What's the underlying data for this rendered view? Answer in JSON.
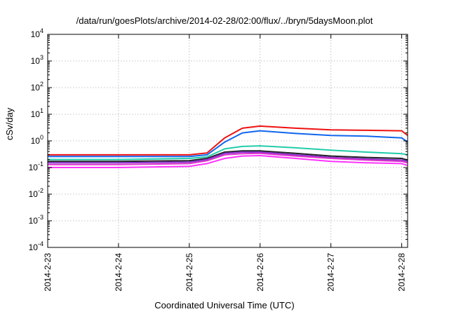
{
  "chart_data": {
    "type": "line",
    "title": "/data/run/goesPlots/archive/2014-02-28/02:00/flux/../bryn/5daysMoon.plot",
    "xlabel": "Coordinated Universal Time (UTC)",
    "ylabel": "cSv/day",
    "yscale": "log",
    "ylim": [
      0.0001,
      10000
    ],
    "xlim": [
      "2014-02-23",
      "2014-02-28 02:00"
    ],
    "yticks": [
      {
        "base": "10",
        "exp": "-4"
      },
      {
        "base": "10",
        "exp": "-3"
      },
      {
        "base": "10",
        "exp": "-2"
      },
      {
        "base": "10",
        "exp": "-1"
      },
      {
        "base": "10",
        "exp": "0"
      },
      {
        "base": "10",
        "exp": "1"
      },
      {
        "base": "10",
        "exp": "2"
      },
      {
        "base": "10",
        "exp": "3"
      },
      {
        "base": "10",
        "exp": "4"
      }
    ],
    "xticks": [
      "2014-2-23",
      "2014-2-24",
      "2014-2-25",
      "2014-2-26",
      "2014-2-27",
      "2014-2-28"
    ],
    "grid": true,
    "series": [
      {
        "color": "#ee1111",
        "x": [
          "2014-02-23",
          "2014-02-24",
          "2014-02-25",
          "2014-02-25 06:00",
          "2014-02-25 12:00",
          "2014-02-25 18:00",
          "2014-02-26",
          "2014-02-26 12:00",
          "2014-02-27",
          "2014-02-27 12:00",
          "2014-02-28",
          "2014-02-28 02:00"
        ],
        "y": [
          0.3,
          0.3,
          0.3,
          0.35,
          1.3,
          3.0,
          3.6,
          3.0,
          2.6,
          2.5,
          2.4,
          1.6
        ]
      },
      {
        "color": "#1166ee",
        "x": [
          "2014-02-23",
          "2014-02-24",
          "2014-02-25",
          "2014-02-25 06:00",
          "2014-02-25 12:00",
          "2014-02-25 18:00",
          "2014-02-26",
          "2014-02-26 12:00",
          "2014-02-27",
          "2014-02-27 12:00",
          "2014-02-28",
          "2014-02-28 02:00"
        ],
        "y": [
          0.26,
          0.26,
          0.26,
          0.3,
          0.9,
          2.0,
          2.4,
          1.9,
          1.6,
          1.5,
          1.3,
          0.9
        ]
      },
      {
        "color": "#22ccaa",
        "x": [
          "2014-02-23",
          "2014-02-24",
          "2014-02-25",
          "2014-02-25 06:00",
          "2014-02-25 12:00",
          "2014-02-25 18:00",
          "2014-02-26",
          "2014-02-26 12:00",
          "2014-02-27",
          "2014-02-27 12:00",
          "2014-02-28",
          "2014-02-28 02:00"
        ],
        "y": [
          0.2,
          0.2,
          0.22,
          0.25,
          0.5,
          0.62,
          0.65,
          0.55,
          0.45,
          0.38,
          0.33,
          0.3
        ]
      },
      {
        "color": "#222222",
        "x": [
          "2014-02-23",
          "2014-02-24",
          "2014-02-25",
          "2014-02-25 06:00",
          "2014-02-25 12:00",
          "2014-02-25 18:00",
          "2014-02-26",
          "2014-02-26 12:00",
          "2014-02-27",
          "2014-02-27 12:00",
          "2014-02-28",
          "2014-02-28 02:00"
        ],
        "y": [
          0.17,
          0.17,
          0.18,
          0.22,
          0.38,
          0.42,
          0.42,
          0.34,
          0.27,
          0.24,
          0.22,
          0.19
        ]
      },
      {
        "color": "#8833cc",
        "x": [
          "2014-02-23",
          "2014-02-24",
          "2014-02-25",
          "2014-02-25 06:00",
          "2014-02-25 12:00",
          "2014-02-25 18:00",
          "2014-02-26",
          "2014-02-26 12:00",
          "2014-02-27",
          "2014-02-27 12:00",
          "2014-02-28",
          "2014-02-28 02:00"
        ],
        "y": [
          0.15,
          0.15,
          0.16,
          0.2,
          0.34,
          0.38,
          0.38,
          0.3,
          0.24,
          0.21,
          0.19,
          0.17
        ]
      },
      {
        "color": "#dd33cc",
        "x": [
          "2014-02-23",
          "2014-02-24",
          "2014-02-25",
          "2014-02-25 06:00",
          "2014-02-25 12:00",
          "2014-02-25 18:00",
          "2014-02-26",
          "2014-02-26 12:00",
          "2014-02-27",
          "2014-02-27 12:00",
          "2014-02-28",
          "2014-02-28 02:00"
        ],
        "y": [
          0.13,
          0.13,
          0.14,
          0.18,
          0.3,
          0.33,
          0.34,
          0.27,
          0.22,
          0.19,
          0.17,
          0.15
        ]
      },
      {
        "color": "#ff33ff",
        "x": [
          "2014-02-23",
          "2014-02-24",
          "2014-02-25",
          "2014-02-25 06:00",
          "2014-02-25 12:00",
          "2014-02-25 18:00",
          "2014-02-26",
          "2014-02-26 12:00",
          "2014-02-27",
          "2014-02-27 12:00",
          "2014-02-28",
          "2014-02-28 02:00"
        ],
        "y": [
          0.1,
          0.1,
          0.11,
          0.14,
          0.22,
          0.27,
          0.28,
          0.22,
          0.17,
          0.15,
          0.14,
          0.12
        ]
      }
    ]
  }
}
